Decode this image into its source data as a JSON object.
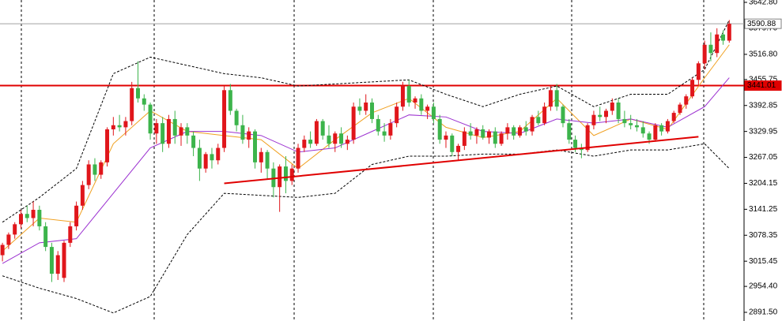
{
  "chart_data": {
    "type": "candlestick",
    "xlim": [
      -0.4,
      120.4
    ],
    "ylim": [
      2870.5,
      3648.5
    ],
    "yticks": [
      {
        "value": 3642.8,
        "label": "3642.80"
      },
      {
        "value": 3579.7,
        "label": "3579.70"
      },
      {
        "value": 3516.8,
        "label": "3516.80"
      },
      3455.75,
      3392.85,
      3329.95,
      3267.05,
      3204.15,
      3141.25,
      3078.35,
      3015.45,
      {
        "value": 2954.4,
        "label": "2954.40"
      },
      {
        "value": 2891.5,
        "label": "2891.50"
      }
    ],
    "up_color": "#e0161b",
    "down_color": "#3cb44b",
    "candles": [
      [
        3030,
        3060,
        3015,
        3055
      ],
      [
        3055,
        3085,
        3045,
        3080
      ],
      [
        3080,
        3110,
        3070,
        3105
      ],
      [
        3105,
        3140,
        3095,
        3130
      ],
      [
        3130,
        3150,
        3110,
        3120
      ],
      [
        3120,
        3160,
        3100,
        3140
      ],
      [
        3140,
        3150,
        3090,
        3100
      ],
      [
        3100,
        3110,
        3040,
        3050
      ],
      [
        3050,
        3060,
        2965,
        2985
      ],
      [
        2985,
        3040,
        2970,
        3030
      ],
      [
        2975,
        3065,
        2965,
        3060
      ],
      [
        3060,
        3110,
        3050,
        3100
      ],
      [
        3100,
        3160,
        3090,
        3150
      ],
      [
        3150,
        3210,
        3140,
        3200
      ],
      [
        3200,
        3260,
        3190,
        3250
      ],
      [
        3250,
        3265,
        3210,
        3225
      ],
      [
        3225,
        3260,
        3215,
        3255
      ],
      [
        3255,
        3340,
        3245,
        3335
      ],
      [
        3335,
        3365,
        3320,
        3345
      ],
      [
        3345,
        3370,
        3330,
        3340
      ],
      [
        3340,
        3365,
        3320,
        3355
      ],
      [
        3355,
        3450,
        3345,
        3435
      ],
      [
        3435,
        3500,
        3400,
        3410
      ],
      [
        3410,
        3420,
        3380,
        3395
      ],
      [
        3395,
        3400,
        3310,
        3325
      ],
      [
        3325,
        3360,
        3300,
        3350
      ],
      [
        3350,
        3365,
        3280,
        3300
      ],
      [
        3300,
        3370,
        3290,
        3360
      ],
      [
        3360,
        3380,
        3300,
        3320
      ],
      [
        3320,
        3350,
        3295,
        3340
      ],
      [
        3340,
        3350,
        3300,
        3320
      ],
      [
        3320,
        3330,
        3270,
        3290
      ],
      [
        3290,
        3310,
        3210,
        3240
      ],
      [
        3240,
        3280,
        3230,
        3275
      ],
      [
        3275,
        3290,
        3240,
        3260
      ],
      [
        3260,
        3300,
        3250,
        3290
      ],
      [
        3290,
        3440,
        3280,
        3430
      ],
      [
        3430,
        3445,
        3370,
        3380
      ],
      [
        3380,
        3385,
        3330,
        3345
      ],
      [
        3345,
        3370,
        3300,
        3310
      ],
      [
        3310,
        3340,
        3290,
        3330
      ],
      [
        3330,
        3335,
        3240,
        3255
      ],
      [
        3255,
        3290,
        3230,
        3280
      ],
      [
        3280,
        3285,
        3215,
        3240
      ],
      [
        3240,
        3255,
        3170,
        3195
      ],
      [
        3195,
        3250,
        3135,
        3245
      ],
      [
        3245,
        3270,
        3180,
        3210
      ],
      [
        3210,
        3250,
        3200,
        3240
      ],
      [
        3240,
        3300,
        3230,
        3290
      ],
      [
        3290,
        3320,
        3280,
        3310
      ],
      [
        3310,
        3330,
        3290,
        3300
      ],
      [
        3300,
        3360,
        3295,
        3355
      ],
      [
        3355,
        3360,
        3310,
        3320
      ],
      [
        3320,
        3345,
        3290,
        3300
      ],
      [
        3300,
        3330,
        3280,
        3325
      ],
      [
        3325,
        3340,
        3290,
        3300
      ],
      [
        3300,
        3320,
        3285,
        3310
      ],
      [
        3310,
        3400,
        3300,
        3390
      ],
      [
        3390,
        3410,
        3370,
        3380
      ],
      [
        3380,
        3420,
        3370,
        3400
      ],
      [
        3400,
        3410,
        3350,
        3360
      ],
      [
        3360,
        3370,
        3320,
        3330
      ],
      [
        3330,
        3350,
        3305,
        3320
      ],
      [
        3320,
        3360,
        3310,
        3350
      ],
      [
        3350,
        3400,
        3340,
        3390
      ],
      [
        3390,
        3450,
        3380,
        3440
      ],
      [
        3440,
        3455,
        3390,
        3400
      ],
      [
        3400,
        3415,
        3385,
        3410
      ],
      [
        3410,
        3420,
        3370,
        3380
      ],
      [
        3380,
        3395,
        3360,
        3390
      ],
      [
        3390,
        3400,
        3350,
        3360
      ],
      [
        3360,
        3370,
        3300,
        3310
      ],
      [
        3310,
        3330,
        3290,
        3320
      ],
      [
        3320,
        3325,
        3270,
        3280
      ],
      [
        3280,
        3300,
        3260,
        3295
      ],
      [
        3295,
        3340,
        3285,
        3330
      ],
      [
        3330,
        3350,
        3310,
        3320
      ],
      [
        3320,
        3340,
        3300,
        3335
      ],
      [
        3335,
        3345,
        3310,
        3315
      ],
      [
        3315,
        3335,
        3300,
        3330
      ],
      [
        3330,
        3340,
        3290,
        3300
      ],
      [
        3300,
        3330,
        3295,
        3325
      ],
      [
        3325,
        3350,
        3310,
        3340
      ],
      [
        3340,
        3345,
        3310,
        3320
      ],
      [
        3320,
        3345,
        3315,
        3340
      ],
      [
        3340,
        3355,
        3320,
        3330
      ],
      [
        3330,
        3370,
        3320,
        3365
      ],
      [
        3365,
        3380,
        3345,
        3350
      ],
      [
        3350,
        3400,
        3345,
        3390
      ],
      [
        3390,
        3440,
        3380,
        3430
      ],
      [
        3430,
        3445,
        3380,
        3390
      ],
      [
        3390,
        3395,
        3340,
        3350
      ],
      [
        3350,
        3360,
        3300,
        3310
      ],
      [
        3310,
        3320,
        3280,
        3290
      ],
      [
        3290,
        3300,
        3265,
        3285
      ],
      [
        3285,
        3350,
        3280,
        3345
      ],
      [
        3345,
        3380,
        3335,
        3370
      ],
      [
        3370,
        3390,
        3355,
        3365
      ],
      [
        3365,
        3385,
        3350,
        3380
      ],
      [
        3380,
        3410,
        3370,
        3400
      ],
      [
        3400,
        3410,
        3350,
        3360
      ],
      [
        3360,
        3380,
        3340,
        3350
      ],
      [
        3350,
        3370,
        3335,
        3345
      ],
      [
        3345,
        3360,
        3330,
        3340
      ],
      [
        3340,
        3355,
        3315,
        3325
      ],
      [
        3325,
        3330,
        3300,
        3310
      ],
      [
        3310,
        3350,
        3305,
        3345
      ],
      [
        3345,
        3350,
        3320,
        3330
      ],
      [
        3330,
        3360,
        3325,
        3355
      ],
      [
        3355,
        3380,
        3350,
        3375
      ],
      [
        3375,
        3400,
        3370,
        3395
      ],
      [
        3395,
        3420,
        3385,
        3415
      ],
      [
        3415,
        3460,
        3410,
        3455
      ],
      [
        3455,
        3500,
        3440,
        3495
      ],
      [
        3495,
        3550,
        3480,
        3540
      ],
      [
        3540,
        3570,
        3500,
        3520
      ],
      [
        3520,
        3580,
        3510,
        3565
      ],
      [
        3565,
        3575,
        3540,
        3550
      ],
      [
        3550,
        3600,
        3545,
        3590.88
      ]
    ],
    "line_x": [
      0,
      6,
      12,
      18,
      24,
      30,
      36,
      42,
      48,
      54,
      60,
      66,
      72,
      78,
      84,
      90,
      96,
      102,
      108,
      114,
      118
    ],
    "lines": [
      {
        "color": "#f0a020",
        "dashed": false,
        "values": [
          3040,
          3120,
          3110,
          3300,
          3380,
          3330,
          3320,
          3310,
          3240,
          3310,
          3375,
          3410,
          3340,
          3315,
          3330,
          3410,
          3320,
          3360,
          3335,
          3460,
          3540
        ]
      },
      {
        "color": "#9b30d0",
        "dashed": false,
        "values": [
          3010,
          3060,
          3070,
          3180,
          3290,
          3330,
          3330,
          3320,
          3280,
          3290,
          3330,
          3370,
          3365,
          3330,
          3325,
          3360,
          3350,
          3360,
          3340,
          3390,
          3460
        ]
      },
      {
        "color": "#000000",
        "dashed": true,
        "values": [
          3110,
          3170,
          3240,
          3470,
          3510,
          3490,
          3470,
          3460,
          3440,
          3445,
          3450,
          3455,
          3420,
          3390,
          3420,
          3440,
          3390,
          3420,
          3420,
          3480,
          3600
        ]
      },
      {
        "color": "#000000",
        "dashed": true,
        "values": [
          2980,
          2950,
          2925,
          2890,
          2930,
          3080,
          3180,
          3175,
          3170,
          3180,
          3250,
          3270,
          3270,
          3275,
          3275,
          3285,
          3270,
          3285,
          3285,
          3300,
          3240
        ]
      }
    ],
    "hlines": [
      {
        "value": 3590.88,
        "color": "#a0a0a0"
      },
      {
        "value": 3441.01,
        "color": "#e00000"
      }
    ],
    "trendline": {
      "x": [
        36,
        113
      ],
      "y": [
        3204,
        3317
      ],
      "color": "#e00000"
    }
  }
}
